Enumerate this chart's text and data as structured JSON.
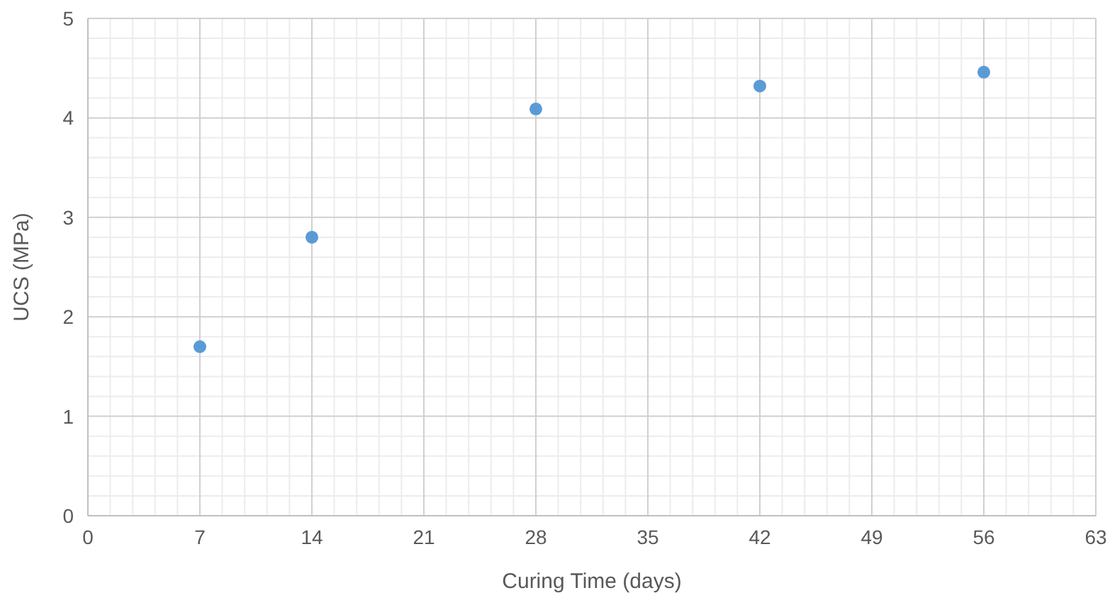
{
  "chart_data": {
    "type": "scatter",
    "xlabel": "Curing Time (days)",
    "ylabel": "UCS (MPa)",
    "x": [
      7,
      14,
      28,
      42,
      56
    ],
    "series": [
      {
        "color": "#5b9bd5",
        "values": [
          1.7,
          2.8,
          4.09,
          4.32,
          4.46
        ]
      }
    ],
    "xlim": [
      0,
      63
    ],
    "xticks": [
      0,
      7,
      14,
      21,
      28,
      35,
      42,
      49,
      56,
      63
    ],
    "ylim": [
      0,
      5
    ],
    "yticks": [
      0,
      1,
      2,
      3,
      4,
      5
    ],
    "grid": true,
    "marker": "circle"
  }
}
